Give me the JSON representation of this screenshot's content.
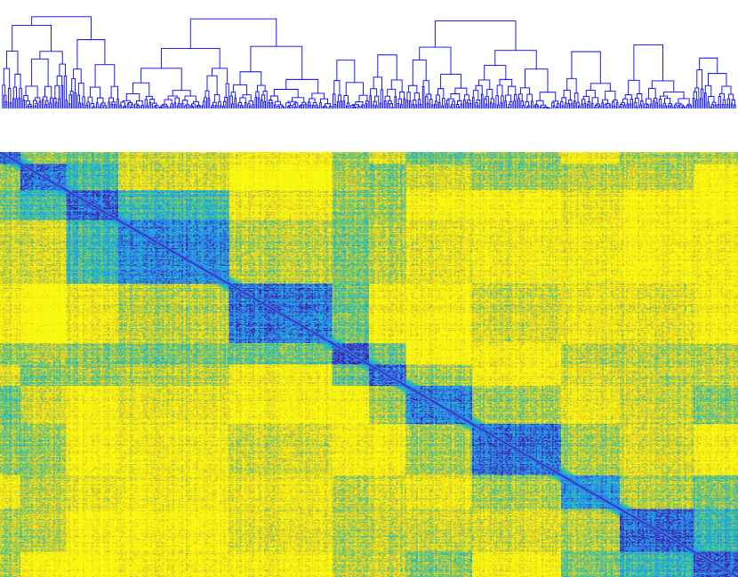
{
  "chart_data": [
    {
      "type": "dendrogram",
      "title": "",
      "xlabel": "",
      "ylabel": "",
      "leaf_count": 500,
      "link_color": "#0000ff",
      "clusters": [
        {
          "range": [
            0,
            14
          ],
          "link_height": 0.55
        },
        {
          "range": [
            14,
            45
          ],
          "link_height": 0.6
        },
        {
          "range": [
            45,
            80
          ],
          "link_height": 0.65
        },
        {
          "range": [
            80,
            155
          ],
          "link_height": 0.7
        },
        {
          "range": [
            155,
            225
          ],
          "link_height": 0.62
        },
        {
          "range": [
            225,
            250
          ],
          "link_height": 0.55
        },
        {
          "range": [
            250,
            275
          ],
          "link_height": 0.58
        },
        {
          "range": [
            275,
            320
          ],
          "link_height": 0.68
        },
        {
          "range": [
            320,
            380
          ],
          "link_height": 0.72
        },
        {
          "range": [
            380,
            420
          ],
          "link_height": 0.66
        },
        {
          "range": [
            420,
            470
          ],
          "link_height": 0.7
        },
        {
          "range": [
            470,
            500
          ],
          "link_height": 0.6
        }
      ],
      "merges": [
        {
          "groups": [
            [
              0,
              14
            ],
            [
              14,
              45
            ]
          ],
          "height": 0.78
        },
        {
          "groups": [
            [
              0,
              45
            ],
            [
              45,
              80
            ]
          ],
          "height": 0.86
        },
        {
          "groups": [
            [
              80,
              155
            ],
            [
              155,
              225
            ]
          ],
          "height": 0.84
        },
        {
          "groups": [
            [
              80,
              225
            ],
            [
              225,
              275
            ]
          ],
          "height": 0.9
        },
        {
          "groups": [
            [
              275,
              320
            ],
            [
              320,
              380
            ]
          ],
          "height": 0.82
        },
        {
          "groups": [
            [
              380,
              420
            ],
            [
              420,
              500
            ]
          ],
          "height": 0.8
        },
        {
          "groups": [
            [
              275,
              380
            ],
            [
              380,
              500
            ]
          ],
          "height": 0.9
        },
        {
          "groups": [
            [
              0,
              80
            ],
            [
              80,
              275
            ]
          ],
          "height": 0.94
        },
        {
          "groups": [
            [
              0,
              275
            ],
            [
              275,
              500
            ]
          ],
          "height": 1.0
        }
      ]
    },
    {
      "type": "heatmap",
      "title": "",
      "xlabel": "",
      "ylabel": "",
      "rows": 500,
      "cols": 500,
      "value_range": [
        0,
        1
      ],
      "colormap": "parula",
      "colormap_stops": [
        "#3e26a8",
        "#2e87f7",
        "#1ab1d6",
        "#47c98a",
        "#c9c337",
        "#f8e616",
        "#f9fb0e"
      ],
      "diagonal_value": 0.0,
      "blocks": [
        {
          "range": [
            0,
            14
          ],
          "within": 0.15
        },
        {
          "range": [
            14,
            45
          ],
          "within": 0.1
        },
        {
          "range": [
            45,
            80
          ],
          "within": 0.12
        },
        {
          "range": [
            80,
            155
          ],
          "within": 0.2
        },
        {
          "range": [
            155,
            225
          ],
          "within": 0.15
        },
        {
          "range": [
            225,
            250
          ],
          "within": 0.08
        },
        {
          "range": [
            250,
            275
          ],
          "within": 0.12
        },
        {
          "range": [
            275,
            320
          ],
          "within": 0.2
        },
        {
          "range": [
            320,
            380
          ],
          "within": 0.15
        },
        {
          "range": [
            380,
            420
          ],
          "within": 0.25
        },
        {
          "range": [
            420,
            470
          ],
          "within": 0.15
        },
        {
          "range": [
            470,
            500
          ],
          "within": 0.1
        }
      ]
    }
  ]
}
